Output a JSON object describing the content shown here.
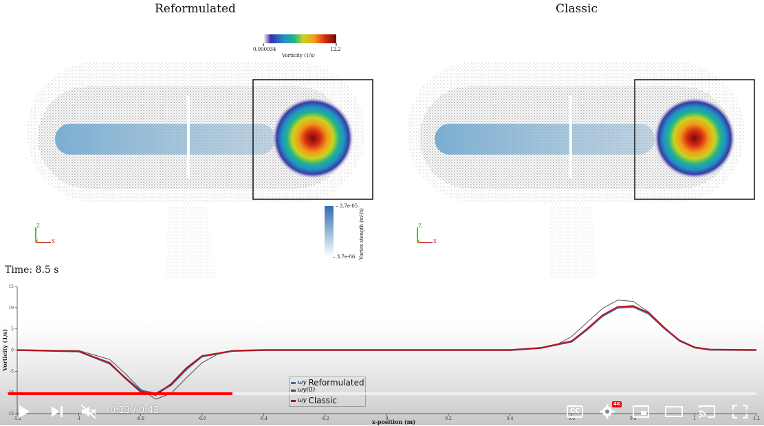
{
  "panels": {
    "left_title": "Reformulated",
    "right_title": "Classic"
  },
  "colorbar_vorticity": {
    "min": "0.000934",
    "max": "12.2",
    "title": "Vorticity (1/s)"
  },
  "colorbar_vortex_strength": {
    "max": "3.7e-05",
    "min": "3.7e-06",
    "title": "Vortex stength (m²/s)"
  },
  "axes_triad": {
    "z": "Z",
    "y": "Y",
    "x": "X"
  },
  "time_label": "Time: 8.5 s",
  "chart_data": {
    "type": "line",
    "xlabel": "x-position (m)",
    "ylabel": "Vorticity (1/s)",
    "xlim": [
      -1.2,
      1.2
    ],
    "ylim": [
      -15,
      15
    ],
    "yticks": [
      "15",
      "10",
      "5",
      "0",
      "-5",
      "-10",
      "-15"
    ],
    "xticks": [
      "-1.2",
      "-1",
      "-0.8",
      "-0.6",
      "-0.4",
      "-0.2",
      "0",
      "0.2",
      "0.4",
      "0.6",
      "0.8",
      "1",
      "1.2"
    ],
    "series": [
      {
        "name": "ωy Reformulated",
        "color": "#3b7fc4",
        "x": [
          -1.2,
          -1.0,
          -0.9,
          -0.85,
          -0.8,
          -0.75,
          -0.7,
          -0.65,
          -0.6,
          -0.5,
          -0.4,
          -0.2,
          0,
          0.2,
          0.4,
          0.5,
          0.6,
          0.65,
          0.7,
          0.75,
          0.8,
          0.85,
          0.9,
          0.95,
          1.0,
          1.05,
          1.2
        ],
        "y": [
          0,
          -0.3,
          -3.2,
          -6.5,
          -9.5,
          -10.3,
          -8.2,
          -4.5,
          -1.5,
          -0.2,
          0,
          0,
          0,
          0,
          0,
          0.5,
          2.0,
          4.8,
          8.0,
          10.0,
          10.2,
          8.6,
          5.2,
          2.2,
          0.6,
          0.1,
          0
        ]
      },
      {
        "name": "ωy(0)",
        "color": "#555555",
        "x": [
          -1.2,
          -1.0,
          -0.9,
          -0.85,
          -0.8,
          -0.75,
          -0.7,
          -0.65,
          -0.6,
          -0.55,
          -0.5,
          -0.4,
          -0.2,
          0,
          0.2,
          0.4,
          0.5,
          0.55,
          0.6,
          0.65,
          0.7,
          0.75,
          0.8,
          0.85,
          0.9,
          0.95,
          1.0,
          1.05,
          1.2
        ],
        "y": [
          0,
          -0.1,
          -2.2,
          -5.5,
          -9.2,
          -11.6,
          -10.2,
          -6.5,
          -3.0,
          -1.0,
          -0.2,
          0,
          0,
          0,
          0,
          0,
          0.4,
          1.2,
          3.2,
          6.5,
          9.8,
          11.8,
          11.5,
          9.0,
          5.5,
          2.2,
          0.6,
          0.1,
          0
        ]
      },
      {
        "name": "ωy Classic",
        "color": "#c0161d",
        "x": [
          -1.2,
          -1.0,
          -0.9,
          -0.85,
          -0.8,
          -0.75,
          -0.7,
          -0.65,
          -0.6,
          -0.5,
          -0.4,
          -0.2,
          0,
          0.2,
          0.4,
          0.5,
          0.6,
          0.65,
          0.7,
          0.75,
          0.8,
          0.85,
          0.9,
          0.95,
          1.0,
          1.05,
          1.2
        ],
        "y": [
          0,
          -0.3,
          -3.0,
          -6.6,
          -9.8,
          -10.6,
          -8.0,
          -4.2,
          -1.4,
          -0.2,
          0,
          0,
          0,
          0,
          0,
          0.5,
          2.1,
          5.0,
          8.2,
          10.2,
          10.4,
          8.8,
          5.3,
          2.3,
          0.6,
          0.1,
          0
        ]
      }
    ]
  },
  "legend": {
    "items": [
      {
        "symbol": "ωy",
        "label": "Reformulated",
        "color": "#3b7fc4"
      },
      {
        "symbol": "ωy(0)",
        "label": "",
        "color": "#555555"
      },
      {
        "symbol": "ωy",
        "label": "Classic",
        "color": "#c0161d"
      }
    ]
  },
  "player": {
    "current_time": "0:13",
    "duration": "0:43",
    "time_display": "0:13 / 0:43",
    "progress_fraction": 0.3,
    "quality_badge": "4K",
    "cc_label": "CC"
  }
}
